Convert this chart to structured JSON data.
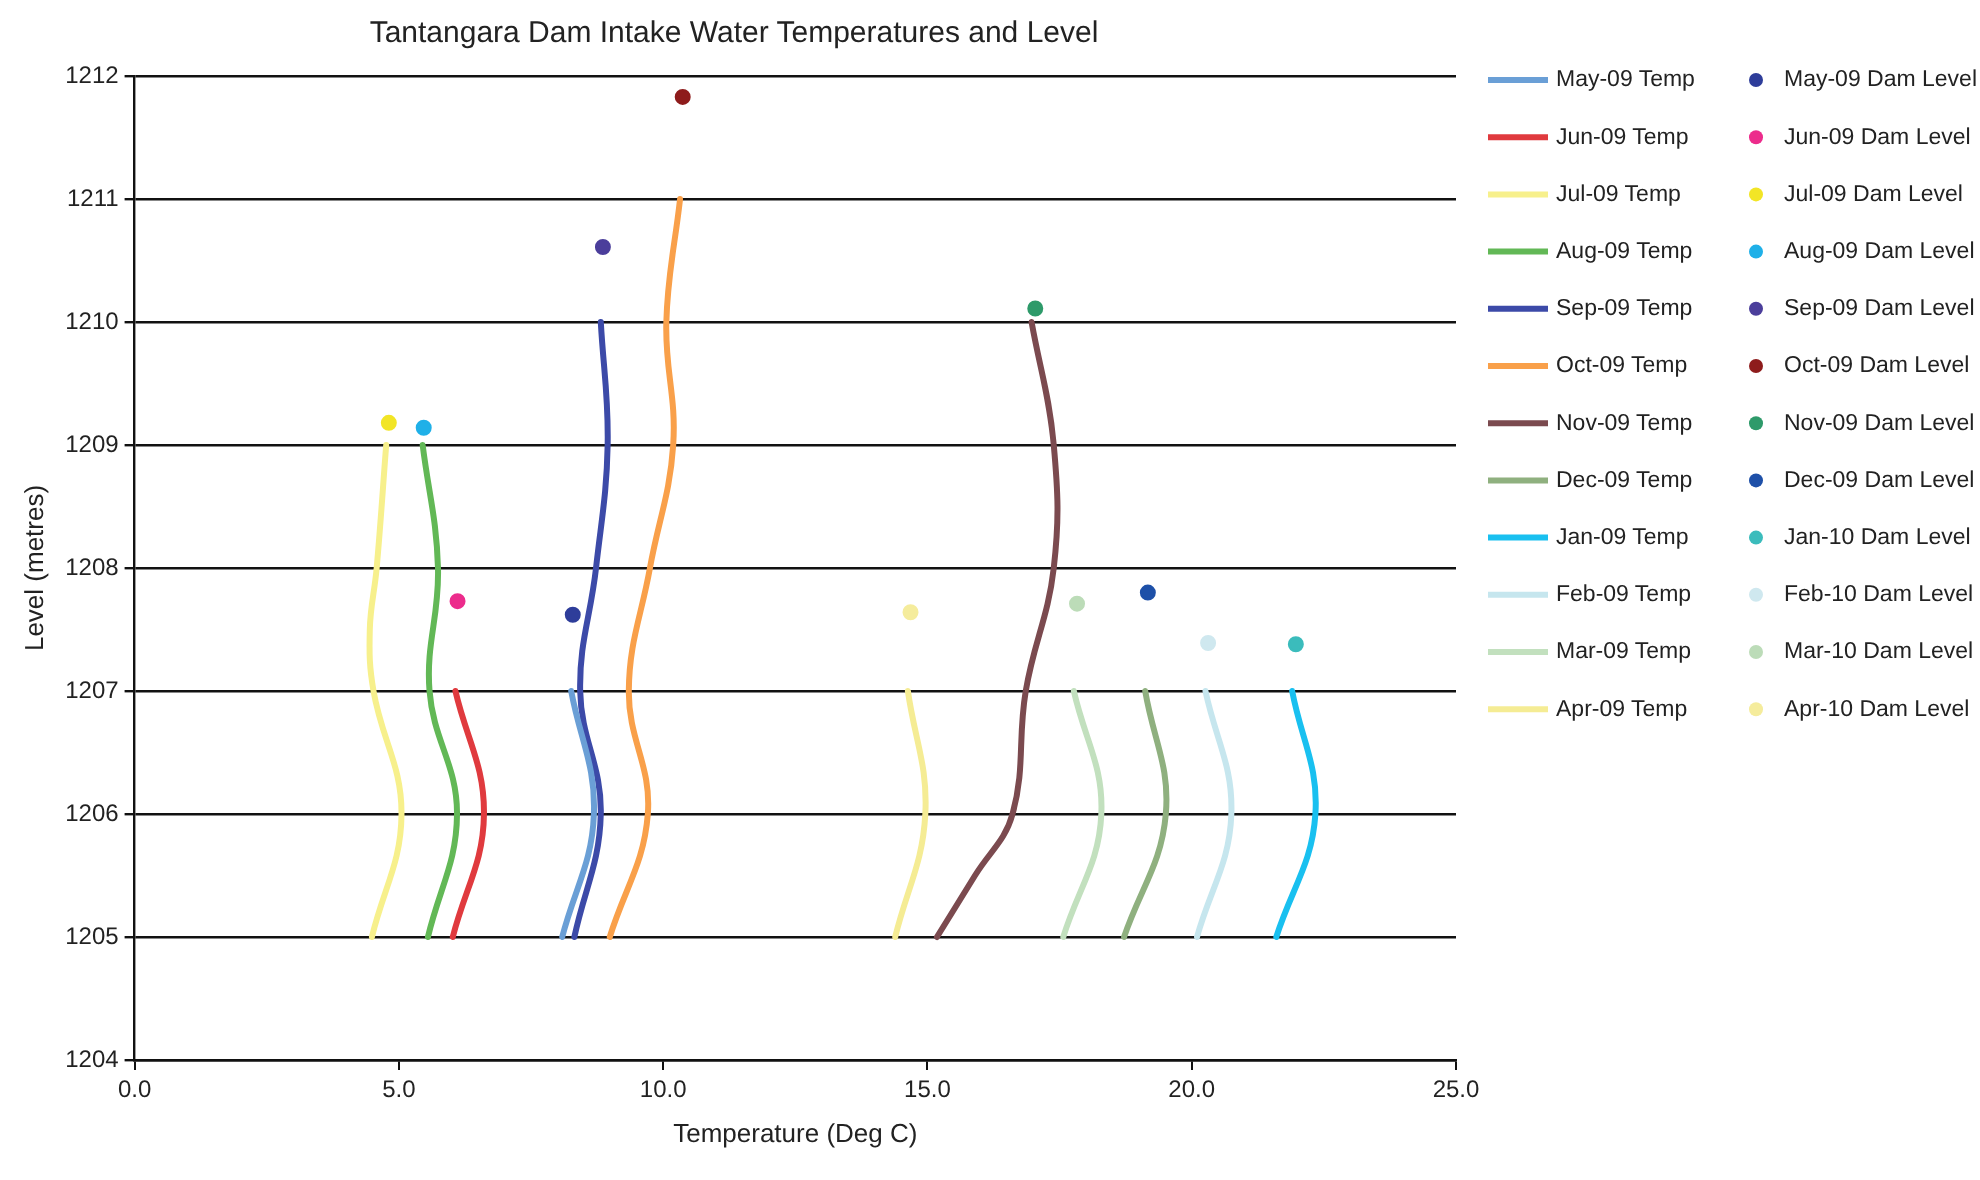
{
  "chart_data": {
    "type": "line",
    "title": "Tantangara Dam Intake Water Temperatures and Level",
    "xlabel": "Temperature (Deg C)",
    "ylabel": "Level (metres)",
    "xlim": [
      0,
      25
    ],
    "xticks": [
      {
        "value": 0,
        "label": "0.0"
      },
      {
        "value": 5,
        "label": "5.0"
      },
      {
        "value": 10,
        "label": "10.0"
      },
      {
        "value": 15,
        "label": "15.0"
      },
      {
        "value": 20,
        "label": "20.0"
      },
      {
        "value": 25,
        "label": "25.0"
      }
    ],
    "ylim": [
      1204,
      1212
    ],
    "yticks": [
      1204,
      1205,
      1206,
      1207,
      1208,
      1209,
      1210,
      1211,
      1212
    ],
    "grid": "y",
    "legend": "right",
    "series": [
      {
        "type": "line",
        "name": "May-09 Temp",
        "color": "#6a9fd6",
        "x": [
          8.09,
          8.69,
          8.26
        ],
        "values": [
          1205,
          1206,
          1207
        ]
      },
      {
        "type": "line",
        "name": "Jun-09 Temp",
        "color": "#e03a3e",
        "x": [
          6.02,
          6.61,
          6.07
        ],
        "values": [
          1205,
          1206,
          1207
        ]
      },
      {
        "type": "line",
        "name": "Jul-09 Temp",
        "color": "#f7f08c",
        "x": [
          4.49,
          5.05,
          4.52,
          4.45,
          4.58,
          4.76
        ],
        "values": [
          1205,
          1206,
          1207,
          1207.5,
          1208,
          1209
        ]
      },
      {
        "type": "line",
        "name": "Aug-09 Temp",
        "color": "#62b856",
        "x": [
          5.55,
          6.1,
          5.58,
          5.74,
          5.45
        ],
        "values": [
          1205,
          1206,
          1207,
          1208,
          1209
        ]
      },
      {
        "type": "line",
        "name": "Sep-09 Temp",
        "color": "#3c4aa8",
        "x": [
          8.32,
          8.82,
          8.43,
          8.73,
          8.95,
          8.82
        ],
        "values": [
          1205,
          1206,
          1207,
          1208,
          1209,
          1210
        ]
      },
      {
        "type": "line",
        "name": "Oct-09 Temp",
        "color": "#f9a04a",
        "x": [
          8.99,
          9.71,
          9.35,
          9.75,
          10.19,
          10.06,
          10.32
        ],
        "values": [
          1205,
          1206,
          1207,
          1208,
          1209,
          1210,
          1211
        ]
      },
      {
        "type": "line",
        "name": "Nov-09 Temp",
        "color": "#7b4a4f",
        "x": [
          15.18,
          15.9,
          16.61,
          16.86,
          17.39,
          17.39,
          16.97
        ],
        "values": [
          1205,
          1205.5,
          1206,
          1207,
          1208,
          1209,
          1210
        ]
      },
      {
        "type": "line",
        "name": "Dec-09 Temp",
        "color": "#8fb07f",
        "x": [
          18.72,
          19.51,
          19.12
        ],
        "values": [
          1205,
          1206,
          1207
        ]
      },
      {
        "type": "line",
        "name": "Jan-09 Temp",
        "color": "#19c0f0",
        "x": [
          21.6,
          22.34,
          21.9
        ],
        "values": [
          1205,
          1206,
          1207
        ]
      },
      {
        "type": "line",
        "name": "Feb-09 Temp",
        "color": "#c6e6ee",
        "x": [
          20.1,
          20.75,
          20.26
        ],
        "values": [
          1205,
          1206,
          1207
        ]
      },
      {
        "type": "line",
        "name": "Mar-09 Temp",
        "color": "#c2e0be",
        "x": [
          17.57,
          18.29,
          17.77
        ],
        "values": [
          1205,
          1206,
          1207
        ]
      },
      {
        "type": "line",
        "name": "Apr-09 Temp",
        "color": "#f5ec94",
        "x": [
          14.39,
          14.96,
          14.63
        ],
        "values": [
          1205,
          1206,
          1207
        ]
      },
      {
        "type": "scatter",
        "name": "May-09 Dam Level",
        "color": "#2e3d9a",
        "x": [
          8.29
        ],
        "values": [
          1207.62
        ]
      },
      {
        "type": "scatter",
        "name": "Jun-09 Dam Level",
        "color": "#ec2c8c",
        "x": [
          6.11
        ],
        "values": [
          1207.73
        ]
      },
      {
        "type": "scatter",
        "name": "Jul-09 Dam Level",
        "color": "#f2e526",
        "x": [
          4.81
        ],
        "values": [
          1209.18
        ]
      },
      {
        "type": "scatter",
        "name": "Aug-09 Dam Level",
        "color": "#1fb0e8",
        "x": [
          5.47
        ],
        "values": [
          1209.14
        ]
      },
      {
        "type": "scatter",
        "name": "Sep-09 Dam Level",
        "color": "#4b3e9b",
        "x": [
          8.86
        ],
        "values": [
          1210.61
        ]
      },
      {
        "type": "scatter",
        "name": "Oct-09 Dam Level",
        "color": "#8e1c1c",
        "x": [
          10.37
        ],
        "values": [
          1211.83
        ]
      },
      {
        "type": "scatter",
        "name": "Nov-09 Dam Level",
        "color": "#2e9a6a",
        "x": [
          17.04
        ],
        "values": [
          1210.11
        ]
      },
      {
        "type": "scatter",
        "name": "Dec-09 Dam Level",
        "color": "#1e50a8",
        "x": [
          19.17
        ],
        "values": [
          1207.8
        ]
      },
      {
        "type": "scatter",
        "name": "Jan-10 Dam Level",
        "color": "#3bbcbc",
        "x": [
          21.97
        ],
        "values": [
          1207.38
        ]
      },
      {
        "type": "scatter",
        "name": "Feb-10 Dam Level",
        "color": "#cfe8ef",
        "x": [
          20.31
        ],
        "values": [
          1207.39
        ]
      },
      {
        "type": "scatter",
        "name": "Mar-10 Dam Level",
        "color": "#bcdcb8",
        "x": [
          17.83
        ],
        "values": [
          1207.71
        ]
      },
      {
        "type": "scatter",
        "name": "Apr-10 Dam Level",
        "color": "#f5ec9c",
        "x": [
          14.68
        ],
        "values": [
          1207.64
        ]
      }
    ]
  }
}
